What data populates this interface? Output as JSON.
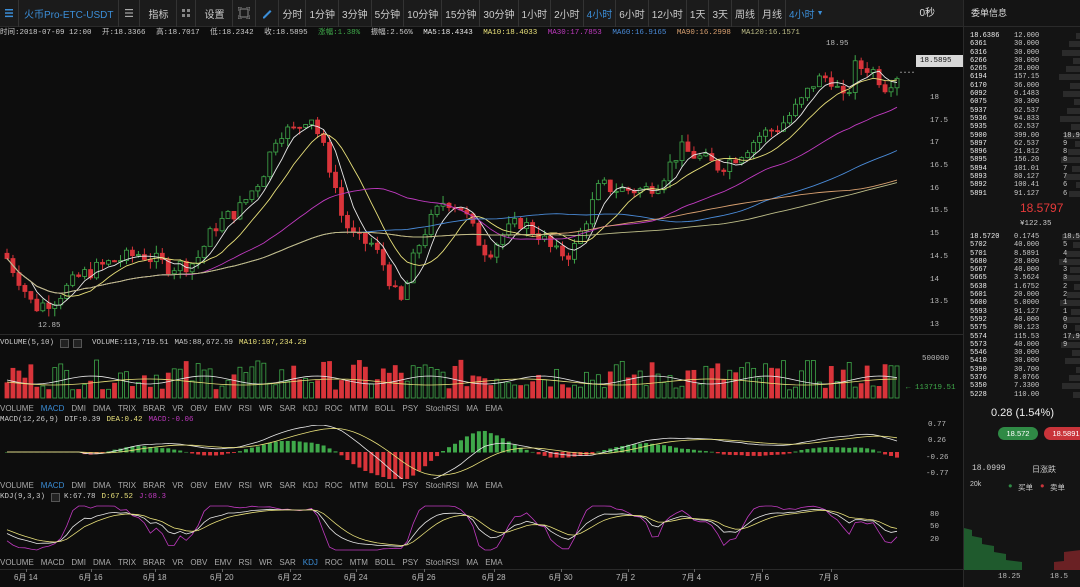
{
  "toolbar": {
    "symbol": "火币Pro-ETC-USDT",
    "indicators_label": "指标",
    "settings_label": "设置",
    "timeframes": [
      "分时",
      "1分钟",
      "3分钟",
      "5分钟",
      "10分钟",
      "15分钟",
      "30分钟",
      "1小时",
      "2小时",
      "4小时",
      "6小时",
      "12小时",
      "1天",
      "3天",
      "周线",
      "月线"
    ],
    "active_timeframe": "4小时",
    "timeframe_dropdown": "4小时",
    "countdown": "0秒"
  },
  "info": {
    "time": "时间:2018-07-09 12:00",
    "open": "开:18.3366",
    "high": "高:18.7017",
    "low": "低:18.2342",
    "close": "收:18.5895",
    "change": "涨幅:1.38%",
    "amplitude": "振幅:2.56%",
    "ma5": "MA5:18.4343",
    "ma10": "MA10:18.4033",
    "ma30": "MA30:17.7853",
    "ma60": "MA60:16.9165",
    "ma90": "MA90:16.2998",
    "ma120": "MA120:16.1571"
  },
  "main_chart": {
    "y_ticks": [
      "18",
      "17.5",
      "17",
      "16.5",
      "16",
      "15.5",
      "15",
      "14.5",
      "14",
      "13.5",
      "13"
    ],
    "y_range": [
      12.8,
      19.3
    ],
    "current_price_tag": "18.5895",
    "max_label": "18.95",
    "min_label": "12.85"
  },
  "volume_panel": {
    "title": "VOLUME(5,10)",
    "volume": "VOLUME:113,719.51",
    "ma5": "MA5:88,672.59",
    "ma10": "MA10:107,234.29",
    "y_tick": "500000",
    "current_tag": "113719.51"
  },
  "macd_panel": {
    "title": "MACD(12,26,9)",
    "dif": "DIF:0.39",
    "dea": "DEA:0.42",
    "macd": "MACD:-0.06",
    "y_ticks": [
      "0.77",
      "0.26",
      "-0.26",
      "-0.77"
    ]
  },
  "kdj_panel": {
    "title": "KDJ(9,3,3)",
    "k": "K:67.78",
    "d": "D:67.52",
    "j": "J:68.3",
    "y_ticks": [
      "80",
      "50",
      "20"
    ]
  },
  "indicator_tabs": [
    "VOLUME",
    "MACD",
    "DMI",
    "DMA",
    "TRIX",
    "BRAR",
    "VR",
    "OBV",
    "EMV",
    "RSI",
    "WR",
    "SAR",
    "KDJ",
    "ROC",
    "MTM",
    "BOLL",
    "PSY",
    "StochRSI",
    "MA",
    "EMA"
  ],
  "tabs_active": [
    "MACD",
    "MACD",
    "KDJ"
  ],
  "x_axis_labels": [
    "6月 14",
    "6月 16",
    "6月 18",
    "6月 20",
    "6月 22",
    "6月 24",
    "6月 26",
    "6月 28",
    "6月 30",
    "7月 2",
    "7月 4",
    "7月 6",
    "7月 8"
  ],
  "colors": {
    "up": "#3fa84a",
    "down": "#d9343a",
    "accent": "#3b8ed8",
    "ma5": "#e8e8e8",
    "ma10": "#e8e07a",
    "ma30": "#c03ac0",
    "ma60": "#4a8bd8",
    "ma90": "#d8a070",
    "ma120": "#bdbd88"
  },
  "orderbook": {
    "title": "委单信息",
    "asks": [
      {
        "p": "18.6386",
        "q": "12.000",
        "q2": ""
      },
      {
        "p": "6361",
        "q": "30.000",
        "q2": ""
      },
      {
        "p": "6316",
        "q": "30.000",
        "q2": ""
      },
      {
        "p": "6266",
        "q": "30.000",
        "q2": ""
      },
      {
        "p": "6265",
        "q": "28.000",
        "q2": ""
      },
      {
        "p": "6194",
        "q": "157.15",
        "q2": ""
      },
      {
        "p": "6170",
        "q": "36.000",
        "q2": ""
      },
      {
        "p": "6092",
        "q": "0.1483",
        "q2": ""
      },
      {
        "p": "6075",
        "q": "30.300",
        "q2": ""
      },
      {
        "p": "5937",
        "q": "62.537",
        "q2": ""
      },
      {
        "p": "5936",
        "q": "94.833",
        "q2": ""
      },
      {
        "p": "5935",
        "q": "62.537",
        "q2": ""
      },
      {
        "p": "5900",
        "q": "399.00",
        "q2": "18.9"
      },
      {
        "p": "5897",
        "q": "62.537",
        "q2": "9"
      },
      {
        "p": "5896",
        "q": "21.812",
        "q2": "8"
      },
      {
        "p": "5895",
        "q": "156.20",
        "q2": "8"
      },
      {
        "p": "5894",
        "q": "101.01",
        "q2": "7"
      },
      {
        "p": "5893",
        "q": "80.127",
        "q2": "7"
      },
      {
        "p": "5892",
        "q": "100.41",
        "q2": "6"
      },
      {
        "p": "5891",
        "q": "91.127",
        "q2": "6"
      }
    ],
    "last_price": "18.5797",
    "last_sub": "¥122.35",
    "bids": [
      {
        "p": "18.5720",
        "q": "0.1745",
        "q2": "18.5"
      },
      {
        "p": "5702",
        "q": "40.000",
        "q2": "5"
      },
      {
        "p": "5701",
        "q": "8.5891",
        "q2": "4"
      },
      {
        "p": "5680",
        "q": "28.800",
        "q2": "4"
      },
      {
        "p": "5667",
        "q": "40.000",
        "q2": "3"
      },
      {
        "p": "5665",
        "q": "3.5624",
        "q2": "3"
      },
      {
        "p": "5638",
        "q": "1.6752",
        "q2": "2"
      },
      {
        "p": "5601",
        "q": "20.000",
        "q2": "2"
      },
      {
        "p": "5600",
        "q": "5.0000",
        "q2": "1"
      },
      {
        "p": "5593",
        "q": "91.127",
        "q2": "1"
      },
      {
        "p": "5592",
        "q": "40.000",
        "q2": "0"
      },
      {
        "p": "5575",
        "q": "80.123",
        "q2": "0"
      },
      {
        "p": "5574",
        "q": "115.53",
        "q2": "17.9"
      },
      {
        "p": "5573",
        "q": "40.000",
        "q2": "9"
      },
      {
        "p": "5546",
        "q": "30.000",
        "q2": ""
      },
      {
        "p": "5410",
        "q": "30.000",
        "q2": ""
      },
      {
        "p": "5390",
        "q": "30.700",
        "q2": ""
      },
      {
        "p": "5376",
        "q": "8.0766",
        "q2": ""
      },
      {
        "p": "5350",
        "q": "7.3300",
        "q2": ""
      },
      {
        "p": "5228",
        "q": "110.00",
        "q2": ""
      }
    ],
    "change": "0.28 (1.54%)",
    "buy_pill": "18.572",
    "sell_pill": "18.5891",
    "day_low": "18.0999",
    "day_label": "日涨跌",
    "depth_buy": "买单",
    "depth_sell": "卖单",
    "depth_y": "20k",
    "depth_x": [
      "18.25",
      "18.5"
    ]
  }
}
